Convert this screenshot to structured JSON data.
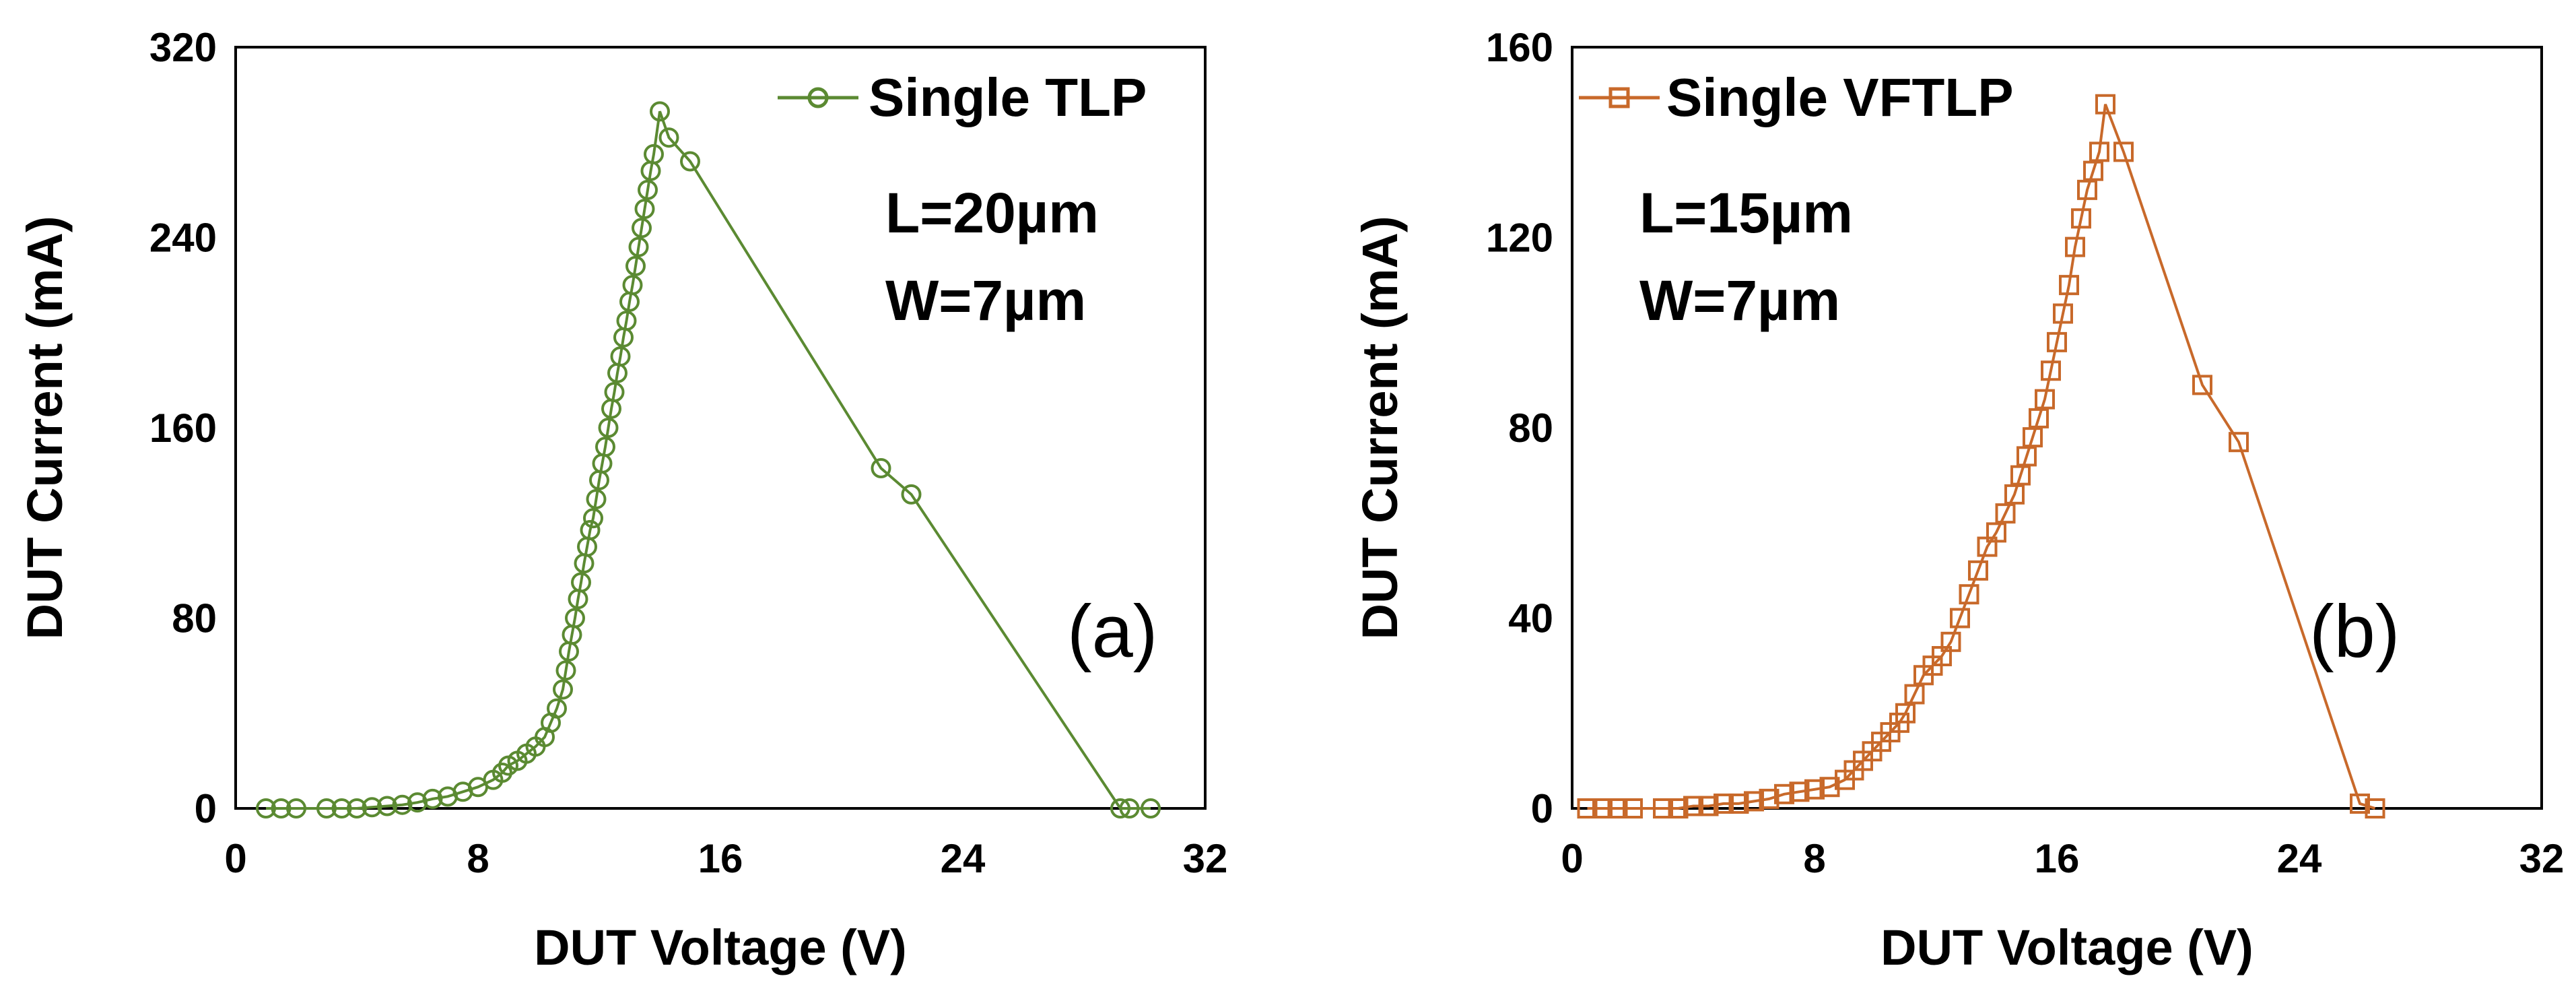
{
  "chart_data": [
    {
      "type": "line",
      "panel_label": "(a)",
      "xlabel": "DUT Voltage (V)",
      "ylabel": "DUT Current (mA)",
      "xlim": [
        0,
        32
      ],
      "ylim": [
        0,
        320
      ],
      "xticks": [
        "0",
        "8",
        "16",
        "24",
        "32"
      ],
      "yticks": [
        "0",
        "80",
        "160",
        "240",
        "320"
      ],
      "legend_location": "top-right",
      "annotations": [
        "L=20µm",
        "W=7µm"
      ],
      "color": "#5b8a32",
      "marker": "circle",
      "series": [
        {
          "name": "Single TLP",
          "x": [
            1.0,
            1.5,
            2.0,
            3.0,
            3.5,
            4.0,
            4.5,
            5.0,
            5.5,
            6.0,
            6.5,
            7.0,
            7.5,
            8.0,
            8.5,
            8.8,
            9.0,
            9.3,
            9.6,
            9.9,
            10.2,
            10.4,
            10.6,
            10.8,
            10.9,
            11.0,
            11.1,
            11.2,
            11.3,
            11.4,
            11.5,
            11.6,
            11.7,
            11.8,
            11.9,
            12.0,
            12.1,
            12.2,
            12.3,
            12.4,
            12.5,
            12.6,
            12.7,
            12.8,
            12.9,
            13.0,
            13.1,
            13.2,
            13.3,
            13.4,
            13.5,
            13.6,
            13.7,
            13.8,
            14.0,
            14.3,
            15.0,
            21.3,
            22.3,
            29.2,
            29.5,
            30.2
          ],
          "y": [
            0,
            0,
            0,
            0,
            0,
            0,
            0.5,
            1,
            1.5,
            2.5,
            4,
            5,
            7,
            9,
            12,
            15,
            18,
            20,
            23,
            26,
            30,
            36,
            42,
            50,
            58,
            66,
            73,
            80,
            88,
            95,
            103,
            110,
            117,
            122,
            130,
            138,
            145,
            152,
            160,
            168,
            175,
            183,
            190,
            198,
            205,
            213,
            220,
            228,
            236,
            244,
            252,
            260,
            268,
            275,
            293,
            282,
            272,
            143,
            132,
            0,
            0,
            0
          ]
        }
      ]
    },
    {
      "type": "line",
      "panel_label": "(b)",
      "xlabel": "DUT Voltage (V)",
      "ylabel": "DUT Current (mA)",
      "xlim": [
        0,
        32
      ],
      "ylim": [
        0,
        160
      ],
      "xticks": [
        "0",
        "8",
        "16",
        "24",
        "32"
      ],
      "yticks": [
        "0",
        "40",
        "80",
        "120",
        "160"
      ],
      "legend_location": "top-left",
      "annotations": [
        "L=15µm",
        "W=7µm"
      ],
      "color": "#c8692a",
      "marker": "square",
      "series": [
        {
          "name": "Single VFTLP",
          "x": [
            0.5,
            1.0,
            1.5,
            2.0,
            3.0,
            3.5,
            4.0,
            4.5,
            5.0,
            5.5,
            6.0,
            6.5,
            7.0,
            7.5,
            8.0,
            8.5,
            9.0,
            9.3,
            9.6,
            9.9,
            10.2,
            10.5,
            10.8,
            11.0,
            11.3,
            11.6,
            11.9,
            12.2,
            12.5,
            12.8,
            13.1,
            13.4,
            13.7,
            14.0,
            14.3,
            14.6,
            14.8,
            15.0,
            15.2,
            15.4,
            15.6,
            15.8,
            16.0,
            16.2,
            16.4,
            16.6,
            16.8,
            17.0,
            17.2,
            17.4,
            17.6,
            18.2,
            20.8,
            22.0,
            26.0,
            26.5
          ],
          "y": [
            0,
            0,
            0,
            0,
            0,
            0,
            0.5,
            0.5,
            1,
            1,
            1.5,
            2,
            3,
            3.5,
            4,
            4.5,
            6,
            8,
            10,
            12,
            14,
            16,
            18,
            20,
            24,
            28,
            30,
            32,
            35,
            40,
            45,
            50,
            55,
            58,
            62,
            66,
            70,
            74,
            78,
            82,
            86,
            92,
            98,
            104,
            110,
            118,
            124,
            130,
            134,
            138,
            148,
            138,
            89,
            77,
            1,
            0
          ]
        }
      ]
    }
  ]
}
